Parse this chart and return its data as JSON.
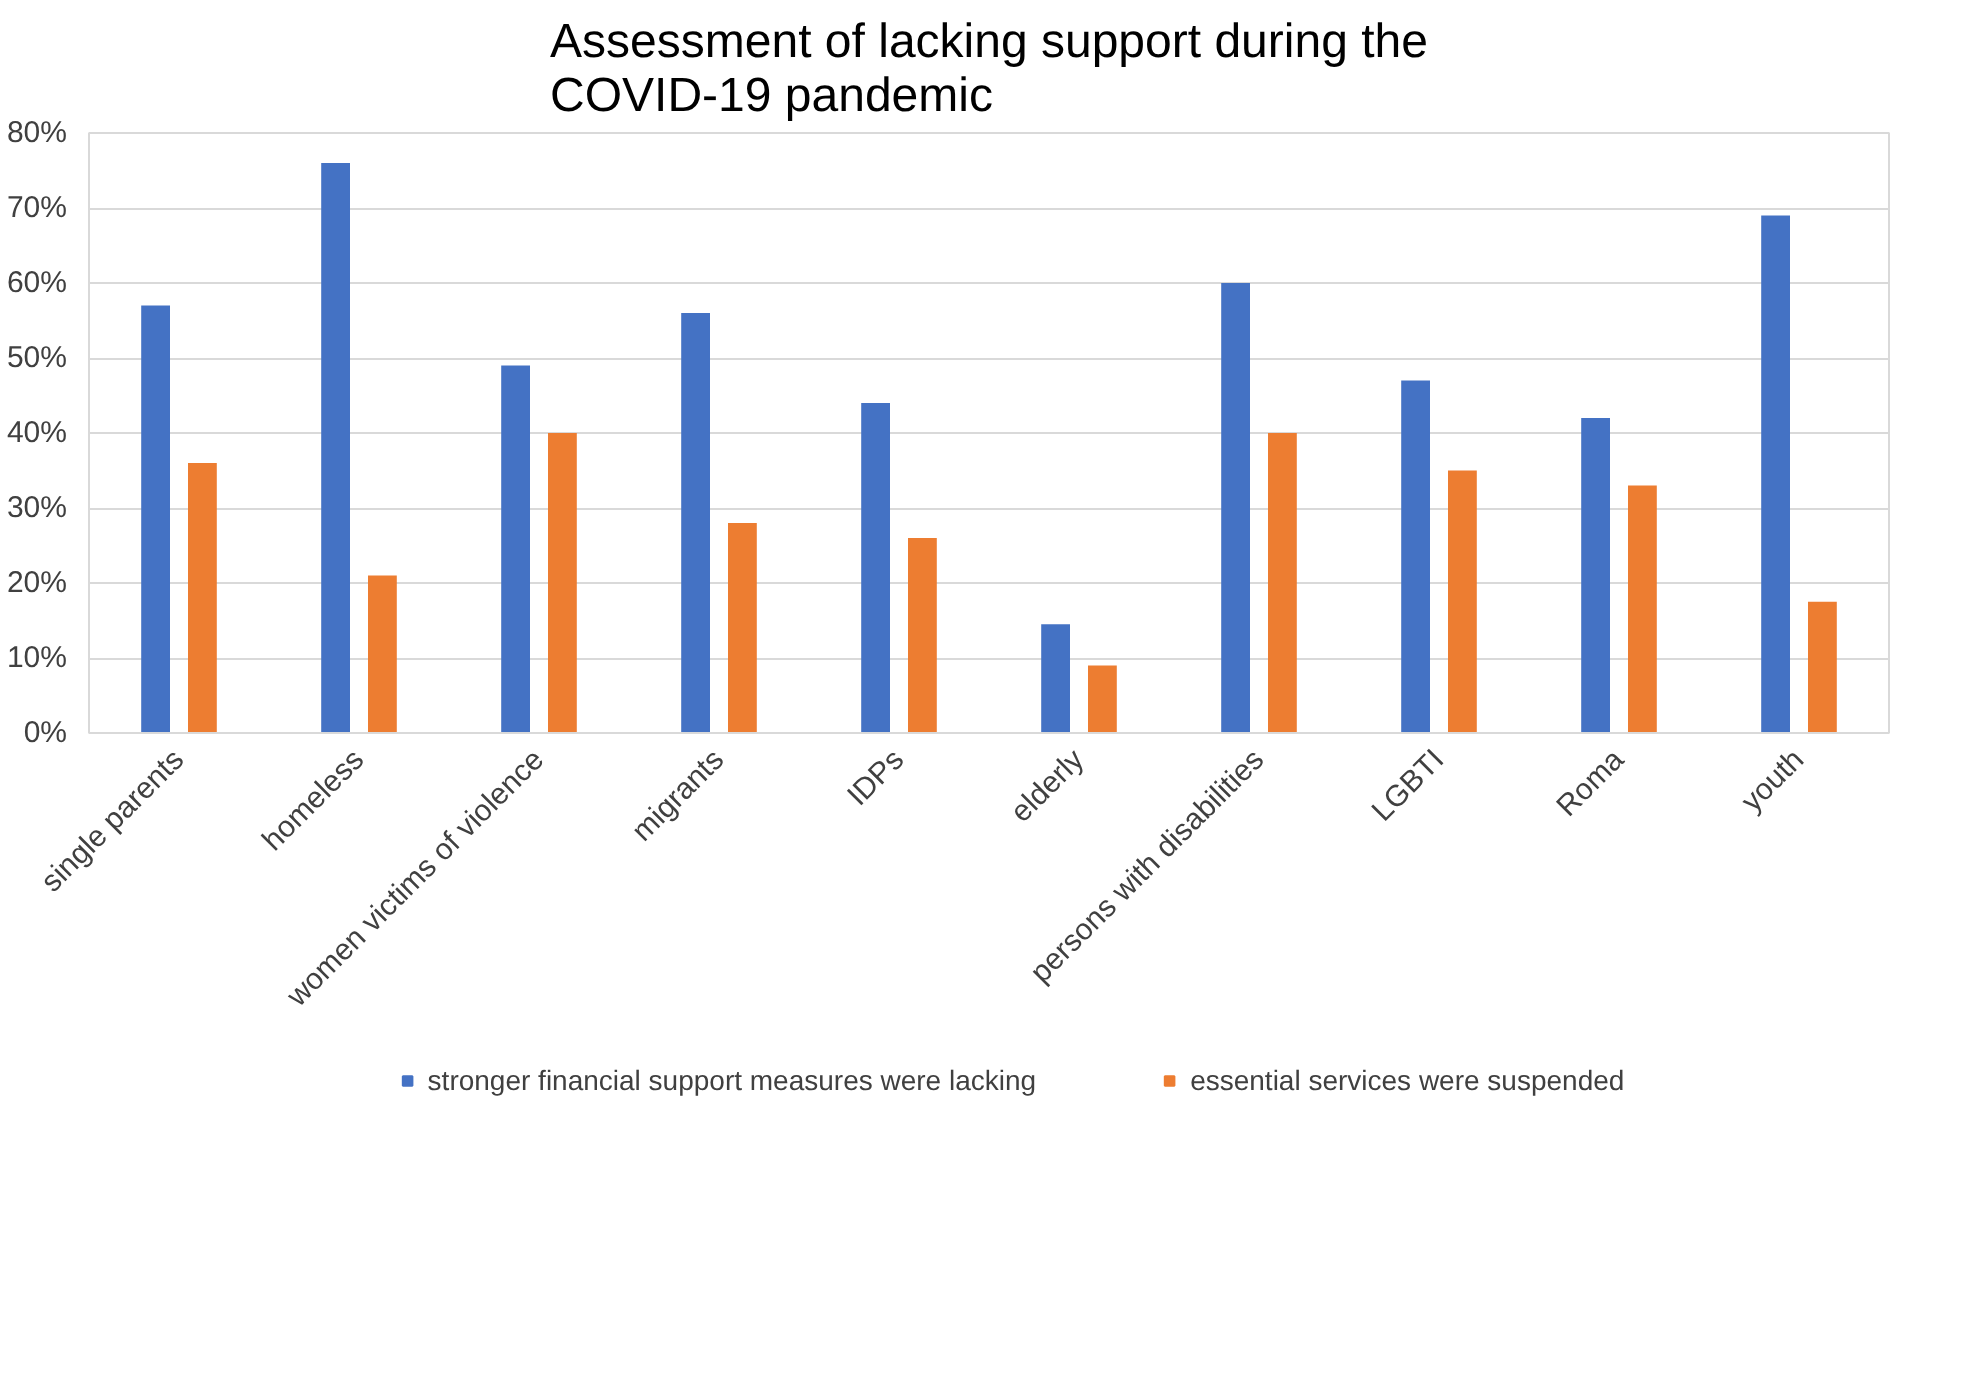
{
  "chart_data": {
    "type": "bar",
    "title": "Assessment of lacking support during the COVID-19 pandemic",
    "categories": [
      "single parents",
      "homeless",
      "women victims of violence",
      "migrants",
      "IDPs",
      "elderly",
      "persons with disabilities",
      "LGBTI",
      "Roma",
      "youth"
    ],
    "series": [
      {
        "name": "stronger financial support measures were lacking",
        "color": "#4472c4",
        "values": [
          57,
          76,
          49,
          56,
          44,
          14.5,
          60,
          47,
          42,
          69
        ]
      },
      {
        "name": "essential services were suspended",
        "color": "#ed7d31",
        "values": [
          36,
          21,
          40,
          28,
          26,
          9,
          40,
          35,
          33,
          17.5
        ]
      }
    ],
    "ylim": [
      0,
      80
    ],
    "yticks": [
      {
        "value": 0,
        "label": "0%"
      },
      {
        "value": 10,
        "label": "10%"
      },
      {
        "value": 20,
        "label": "20%"
      },
      {
        "value": 30,
        "label": "30%"
      },
      {
        "value": 40,
        "label": "40%"
      },
      {
        "value": 50,
        "label": "50%"
      },
      {
        "value": 60,
        "label": "60%"
      },
      {
        "value": 70,
        "label": "70%"
      },
      {
        "value": 80,
        "label": "80%"
      }
    ],
    "grid": "y",
    "legend": "bottom"
  }
}
